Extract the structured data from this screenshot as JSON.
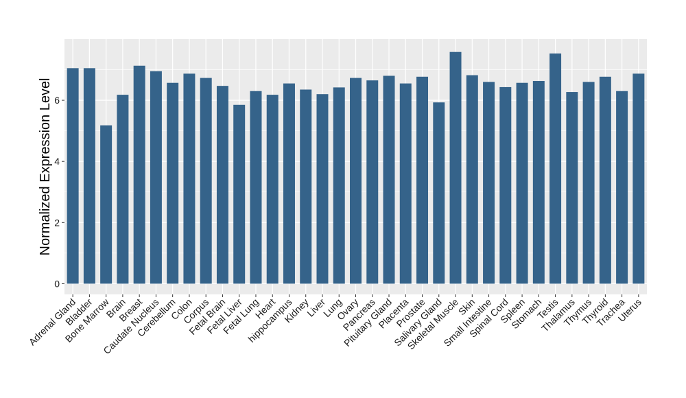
{
  "chart_data": {
    "type": "bar",
    "title": "",
    "xlabel": "",
    "ylabel": "Normalized Expression Level",
    "ylim": [
      -0.35,
      8.0
    ],
    "yticks": [
      0,
      2,
      4,
      6
    ],
    "grid": true,
    "legend": "none",
    "colors": {
      "bar": "#35638A",
      "panel": "#EBEBEB",
      "grid": "#FFFFFF"
    },
    "categories": [
      "Adrenal Gland",
      "Bladder",
      "Bone Marrow",
      "Brain",
      "Breast",
      "Caudate Nucleus",
      "Cerebellum",
      "Colon",
      "Corpus",
      "Fetal Brain",
      "Fetal Liver",
      "Fetal Lung",
      "Heart",
      "hippocampus",
      "Kidney",
      "Liver",
      "Lung",
      "Ovary",
      "Pancreas",
      "Pituitary Gland",
      "Placenta",
      "Prostate",
      "Salivary Gland",
      "Skeletal Muscle",
      "Skin",
      "Small Intestine",
      "Spinal Cord",
      "Spleen",
      "Stomach",
      "Testis",
      "Thalamus",
      "Thymus",
      "Thyroid",
      "Trachea",
      "Uterus"
    ],
    "values": [
      7.05,
      7.05,
      5.18,
      6.18,
      7.13,
      6.95,
      6.57,
      6.87,
      6.73,
      6.47,
      5.85,
      6.3,
      6.18,
      6.55,
      6.35,
      6.2,
      6.42,
      6.73,
      6.65,
      6.8,
      6.55,
      6.77,
      5.93,
      7.58,
      6.82,
      6.6,
      6.43,
      6.57,
      6.63,
      7.53,
      6.27,
      6.6,
      6.77,
      6.3,
      6.87
    ]
  }
}
